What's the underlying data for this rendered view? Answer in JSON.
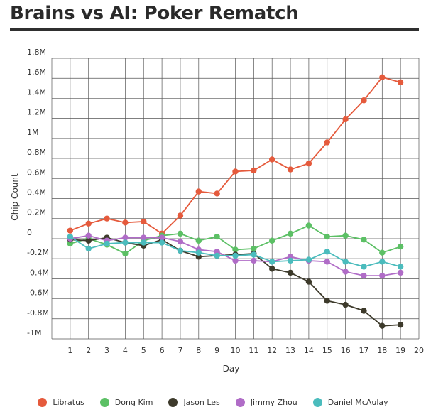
{
  "title": "Brains vs AI: Poker Rematch",
  "chart_data": {
    "type": "line",
    "title": "Brains vs AI: Poker Rematch",
    "xlabel": "Day",
    "ylabel": "Chip Count",
    "x": [
      1,
      2,
      3,
      4,
      5,
      6,
      7,
      8,
      9,
      10,
      11,
      12,
      13,
      14,
      15,
      16,
      17,
      18,
      19
    ],
    "xticks": [
      "1",
      "2",
      "3",
      "4",
      "5",
      "6",
      "7",
      "8",
      "9",
      "10",
      "11",
      "12",
      "13",
      "14",
      "15",
      "16",
      "17",
      "18",
      "19",
      "20"
    ],
    "xlim": [
      0,
      20
    ],
    "ylim": [
      -1000000,
      1800000
    ],
    "yticks": [
      {
        "value": 1800000,
        "label": "1.8M"
      },
      {
        "value": 1600000,
        "label": "1.6M"
      },
      {
        "value": 1400000,
        "label": "1.4M"
      },
      {
        "value": 1200000,
        "label": "1.2M"
      },
      {
        "value": 1000000,
        "label": "1M"
      },
      {
        "value": 800000,
        "label": "0.8M"
      },
      {
        "value": 600000,
        "label": "0.6M"
      },
      {
        "value": 400000,
        "label": "0.4M"
      },
      {
        "value": 200000,
        "label": "0.2M"
      },
      {
        "value": 0,
        "label": "0"
      },
      {
        "value": -200000,
        "label": "-0.2M"
      },
      {
        "value": -400000,
        "label": "-0.4M"
      },
      {
        "value": -600000,
        "label": "-0.6M"
      },
      {
        "value": -800000,
        "label": "-0.8M"
      },
      {
        "value": -1000000,
        "label": "-1M"
      }
    ],
    "grid": true,
    "legend_position": "bottom",
    "series": [
      {
        "name": "Libratus",
        "color": "#e55a3c",
        "values": [
          80000,
          150000,
          200000,
          160000,
          170000,
          50000,
          230000,
          470000,
          450000,
          670000,
          680000,
          790000,
          690000,
          750000,
          960000,
          1190000,
          1380000,
          1610000,
          1560000
        ]
      },
      {
        "name": "Dong Kim",
        "color": "#5cc065",
        "values": [
          -50000,
          0,
          -60000,
          -150000,
          -20000,
          30000,
          50000,
          -20000,
          20000,
          -110000,
          -100000,
          -20000,
          50000,
          130000,
          20000,
          30000,
          -10000,
          -140000,
          -80000
        ]
      },
      {
        "name": "Jason Les",
        "color": "#3d3a2b",
        "values": [
          -10000,
          -20000,
          10000,
          -40000,
          -70000,
          -10000,
          -120000,
          -180000,
          -170000,
          -160000,
          -150000,
          -300000,
          -340000,
          -430000,
          -620000,
          -660000,
          -720000,
          -870000,
          -860000
        ]
      },
      {
        "name": "Jimmy Zhou",
        "color": "#b06cc7",
        "values": [
          0,
          30000,
          -20000,
          10000,
          10000,
          10000,
          -30000,
          -110000,
          -130000,
          -220000,
          -220000,
          -230000,
          -180000,
          -220000,
          -230000,
          -330000,
          -370000,
          -370000,
          -340000
        ]
      },
      {
        "name": "Daniel McAulay",
        "color": "#4bbcbd",
        "values": [
          20000,
          -100000,
          -50000,
          -40000,
          -40000,
          -40000,
          -120000,
          -140000,
          -170000,
          -170000,
          -160000,
          -230000,
          -220000,
          -210000,
          -130000,
          -230000,
          -280000,
          -230000,
          -280000
        ]
      }
    ]
  }
}
